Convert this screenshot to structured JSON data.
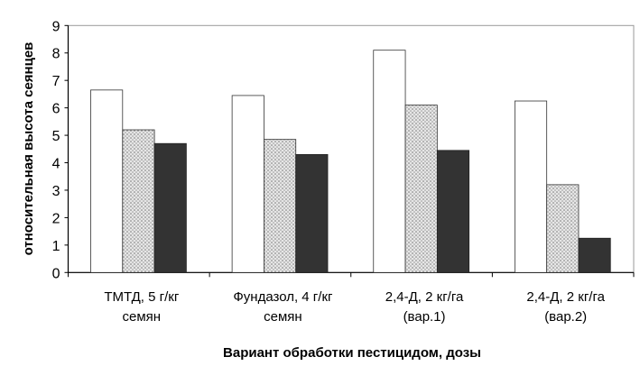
{
  "chart_data": {
    "type": "bar",
    "title": "",
    "xlabel": "Вариант обработки пестицидом, дозы",
    "ylabel": "относительная высота сеянцев",
    "ylim": [
      0,
      9
    ],
    "yticks": [
      0,
      1,
      2,
      3,
      4,
      5,
      6,
      7,
      8,
      9
    ],
    "grid": false,
    "legend": "none",
    "categories": [
      [
        "ТМТД, 5 г/кг",
        "семян"
      ],
      [
        "Фундазол, 4 г/кг",
        "семян"
      ],
      [
        "2,4-Д, 2 кг/га",
        "(вар.1)"
      ],
      [
        "2,4-Д, 2 кг/га",
        "(вар.2)"
      ]
    ],
    "series": [
      {
        "values": [
          6.65,
          6.45,
          8.1,
          6.25
        ],
        "fill": "white"
      },
      {
        "values": [
          5.2,
          4.85,
          6.1,
          3.2
        ],
        "fill": "dotted-gray"
      },
      {
        "values": [
          4.7,
          4.3,
          4.45,
          1.25
        ],
        "fill": "#333333"
      }
    ]
  }
}
